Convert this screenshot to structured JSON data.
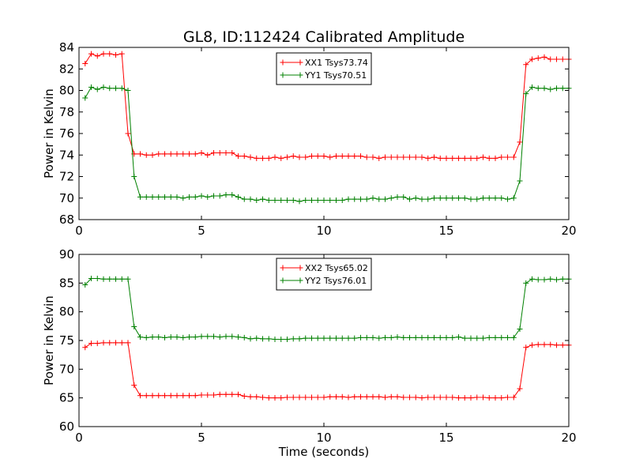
{
  "figure": {
    "title": "GL8, ID:112424 Calibrated Amplitude"
  },
  "chart_data": [
    {
      "type": "line",
      "title": "GL8, ID:112424 Calibrated Amplitude",
      "xlabel": "",
      "ylabel": "Power in Kelvin",
      "xlim": [
        0,
        20
      ],
      "ylim": [
        68,
        84
      ],
      "xticks": [
        0,
        5,
        10,
        15,
        20
      ],
      "yticks": [
        68,
        70,
        72,
        74,
        76,
        78,
        80,
        82,
        84
      ],
      "grid": false,
      "legend_position": "top-center",
      "x": [
        0.25,
        0.5,
        0.75,
        1.0,
        1.25,
        1.5,
        1.75,
        2.0,
        2.25,
        2.5,
        2.75,
        3.0,
        3.25,
        3.5,
        3.75,
        4.0,
        4.25,
        4.5,
        4.75,
        5.0,
        5.25,
        5.5,
        5.75,
        6.0,
        6.25,
        6.5,
        6.75,
        7.0,
        7.25,
        7.5,
        7.75,
        8.0,
        8.25,
        8.5,
        8.75,
        9.0,
        9.25,
        9.5,
        9.75,
        10.0,
        10.25,
        10.5,
        10.75,
        11.0,
        11.25,
        11.5,
        11.75,
        12.0,
        12.25,
        12.5,
        12.75,
        13.0,
        13.25,
        13.5,
        13.75,
        14.0,
        14.25,
        14.5,
        14.75,
        15.0,
        15.25,
        15.5,
        15.75,
        16.0,
        16.25,
        16.5,
        16.75,
        17.0,
        17.25,
        17.5,
        17.75,
        18.0,
        18.25,
        18.5,
        18.75,
        19.0,
        19.25,
        19.5,
        19.75,
        20.0
      ],
      "series": [
        {
          "name": "XX1 Tsys73.74",
          "color": "#ff0000",
          "values": [
            82.5,
            83.4,
            83.2,
            83.4,
            83.4,
            83.3,
            83.4,
            76.0,
            74.1,
            74.1,
            74.0,
            74.0,
            74.1,
            74.1,
            74.1,
            74.1,
            74.1,
            74.1,
            74.1,
            74.2,
            74.0,
            74.2,
            74.2,
            74.2,
            74.2,
            73.9,
            73.9,
            73.8,
            73.7,
            73.7,
            73.7,
            73.8,
            73.7,
            73.8,
            73.9,
            73.8,
            73.8,
            73.9,
            73.9,
            73.9,
            73.8,
            73.9,
            73.9,
            73.9,
            73.9,
            73.9,
            73.8,
            73.8,
            73.7,
            73.8,
            73.8,
            73.8,
            73.8,
            73.8,
            73.8,
            73.8,
            73.7,
            73.8,
            73.7,
            73.7,
            73.7,
            73.7,
            73.7,
            73.7,
            73.7,
            73.8,
            73.7,
            73.7,
            73.8,
            73.8,
            73.8,
            75.2,
            82.4,
            82.9,
            83.0,
            83.1,
            82.9,
            82.9,
            82.9,
            82.9
          ]
        },
        {
          "name": "YY1 Tsys70.51",
          "color": "#008000",
          "values": [
            79.3,
            80.3,
            80.1,
            80.3,
            80.2,
            80.2,
            80.2,
            80.0,
            72.0,
            70.1,
            70.1,
            70.1,
            70.1,
            70.1,
            70.1,
            70.1,
            70.0,
            70.1,
            70.1,
            70.2,
            70.1,
            70.2,
            70.2,
            70.3,
            70.3,
            70.1,
            69.9,
            69.9,
            69.8,
            69.9,
            69.8,
            69.8,
            69.8,
            69.8,
            69.8,
            69.7,
            69.8,
            69.8,
            69.8,
            69.8,
            69.8,
            69.8,
            69.8,
            69.9,
            69.9,
            69.9,
            69.9,
            70.0,
            69.9,
            69.9,
            70.0,
            70.1,
            70.1,
            69.9,
            70.0,
            69.9,
            69.9,
            70.0,
            70.0,
            70.0,
            70.0,
            70.0,
            70.0,
            69.9,
            69.9,
            70.0,
            70.0,
            70.0,
            70.0,
            69.9,
            70.0,
            71.6,
            79.7,
            80.3,
            80.2,
            80.2,
            80.1,
            80.2,
            80.2,
            80.2
          ]
        }
      ]
    },
    {
      "type": "line",
      "title": "",
      "xlabel": "Time (seconds)",
      "ylabel": "Power in Kelvin",
      "xlim": [
        0,
        20
      ],
      "ylim": [
        60,
        90
      ],
      "xticks": [
        0,
        5,
        10,
        15,
        20
      ],
      "yticks": [
        60,
        65,
        70,
        75,
        80,
        85,
        90
      ],
      "grid": false,
      "legend_position": "top-center",
      "x": [
        0.25,
        0.5,
        0.75,
        1.0,
        1.25,
        1.5,
        1.75,
        2.0,
        2.25,
        2.5,
        2.75,
        3.0,
        3.25,
        3.5,
        3.75,
        4.0,
        4.25,
        4.5,
        4.75,
        5.0,
        5.25,
        5.5,
        5.75,
        6.0,
        6.25,
        6.5,
        6.75,
        7.0,
        7.25,
        7.5,
        7.75,
        8.0,
        8.25,
        8.5,
        8.75,
        9.0,
        9.25,
        9.5,
        9.75,
        10.0,
        10.25,
        10.5,
        10.75,
        11.0,
        11.25,
        11.5,
        11.75,
        12.0,
        12.25,
        12.5,
        12.75,
        13.0,
        13.25,
        13.5,
        13.75,
        14.0,
        14.25,
        14.5,
        14.75,
        15.0,
        15.25,
        15.5,
        15.75,
        16.0,
        16.25,
        16.5,
        16.75,
        17.0,
        17.25,
        17.5,
        17.75,
        18.0,
        18.25,
        18.5,
        18.75,
        19.0,
        19.25,
        19.5,
        19.75,
        20.0
      ],
      "series": [
        {
          "name": "XX2 Tsys65.02",
          "color": "#ff0000",
          "values": [
            73.8,
            74.5,
            74.5,
            74.6,
            74.6,
            74.6,
            74.6,
            74.6,
            67.2,
            65.4,
            65.4,
            65.4,
            65.4,
            65.4,
            65.4,
            65.4,
            65.4,
            65.4,
            65.4,
            65.5,
            65.5,
            65.5,
            65.6,
            65.6,
            65.6,
            65.6,
            65.3,
            65.2,
            65.2,
            65.1,
            65.0,
            65.0,
            65.0,
            65.1,
            65.1,
            65.1,
            65.1,
            65.1,
            65.1,
            65.1,
            65.2,
            65.2,
            65.2,
            65.1,
            65.2,
            65.2,
            65.2,
            65.2,
            65.2,
            65.1,
            65.2,
            65.2,
            65.1,
            65.1,
            65.1,
            65.0,
            65.1,
            65.1,
            65.1,
            65.1,
            65.1,
            65.0,
            65.0,
            65.0,
            65.1,
            65.1,
            65.0,
            65.0,
            65.0,
            65.1,
            65.1,
            66.6,
            73.8,
            74.2,
            74.3,
            74.3,
            74.3,
            74.2,
            74.2,
            74.2
          ]
        },
        {
          "name": "YY2 Tsys76.01",
          "color": "#008000",
          "values": [
            84.7,
            85.8,
            85.8,
            85.7,
            85.7,
            85.7,
            85.7,
            85.7,
            77.4,
            75.6,
            75.5,
            75.6,
            75.6,
            75.5,
            75.6,
            75.6,
            75.5,
            75.6,
            75.6,
            75.7,
            75.7,
            75.7,
            75.6,
            75.7,
            75.7,
            75.6,
            75.5,
            75.3,
            75.4,
            75.3,
            75.3,
            75.2,
            75.2,
            75.2,
            75.3,
            75.3,
            75.4,
            75.4,
            75.4,
            75.4,
            75.4,
            75.4,
            75.4,
            75.4,
            75.4,
            75.5,
            75.5,
            75.5,
            75.4,
            75.5,
            75.5,
            75.6,
            75.5,
            75.5,
            75.5,
            75.5,
            75.5,
            75.5,
            75.5,
            75.5,
            75.5,
            75.6,
            75.4,
            75.4,
            75.4,
            75.4,
            75.5,
            75.5,
            75.5,
            75.5,
            75.5,
            77.0,
            85.0,
            85.7,
            85.6,
            85.6,
            85.7,
            85.6,
            85.7,
            85.7
          ]
        }
      ]
    }
  ]
}
